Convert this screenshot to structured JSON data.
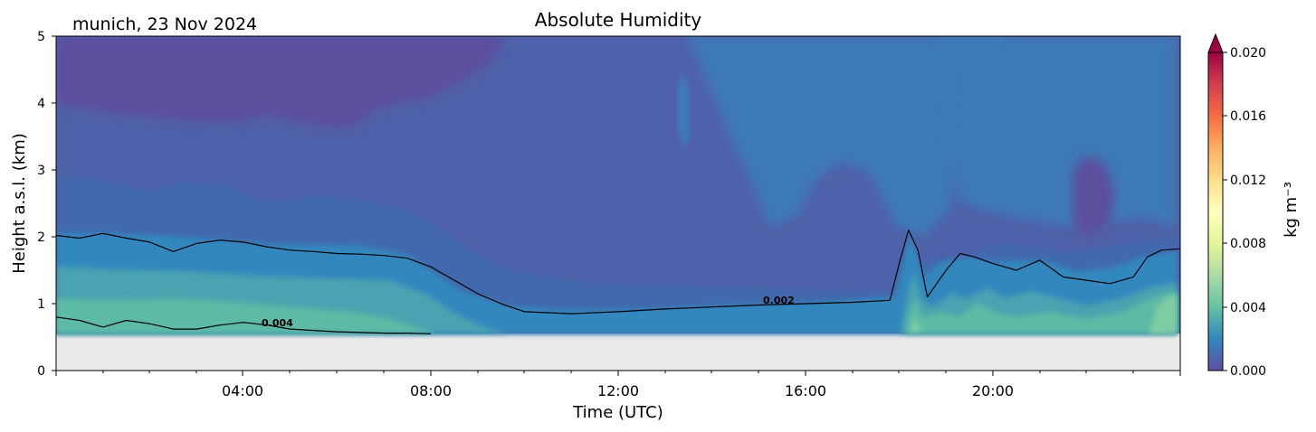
{
  "chart_data": {
    "type": "heatmap",
    "title": "Absolute Humidity",
    "subtitle": "munich, 23 Nov 2024",
    "xlabel": "Time (UTC)",
    "ylabel": "Height a.s.l. (km)",
    "xlim": [
      "00:00",
      "24:00"
    ],
    "ylim": [
      0,
      5
    ],
    "x_ticks": [
      "04:00",
      "08:00",
      "12:00",
      "16:00",
      "20:00"
    ],
    "y_ticks": [
      "0",
      "1",
      "2",
      "3",
      "4",
      "5"
    ],
    "no_data_below_km": 0.55,
    "no_data_color": "#ebebeb",
    "colorbar": {
      "label": "kg m⁻³",
      "min": 0.0,
      "max": 0.02,
      "ticks": [
        "0.000",
        "0.004",
        "0.008",
        "0.012",
        "0.016",
        "0.020"
      ],
      "extend": "max",
      "colormap": "Spectral_r",
      "colors": [
        "#5e4fa2",
        "#3288bd",
        "#66c2a5",
        "#abdda4",
        "#e6f598",
        "#ffffbf",
        "#fee08b",
        "#fdae61",
        "#f46d43",
        "#d53e4f",
        "#9e0142"
      ]
    },
    "contour_labels": [
      "0.004",
      "0.002"
    ],
    "contour_label_positions": [
      {
        "text": "0.004",
        "time_h": 4.8,
        "height_km": 0.68
      },
      {
        "text": "0.002",
        "time_h": 15.3,
        "height_km": 1.0
      }
    ],
    "contours": [
      {
        "level": 0.002,
        "time_h": [
          0.0,
          0.5,
          1.0,
          1.5,
          2.0,
          2.5,
          3.0,
          3.5,
          4.0,
          4.5,
          5.0,
          5.5,
          6.0,
          6.5,
          7.0,
          7.5,
          8.0,
          8.5,
          9.0,
          9.5,
          10.0,
          11.0,
          12.0,
          13.0,
          14.0,
          15.0,
          16.0,
          17.0,
          17.8,
          18.0,
          18.2,
          18.4,
          18.6,
          18.8,
          19.0,
          19.3,
          19.6,
          20.0,
          20.5,
          21.0,
          21.5,
          22.0,
          22.5,
          23.0,
          23.3,
          23.6,
          24.0
        ],
        "height_km": [
          2.02,
          1.98,
          2.05,
          1.98,
          1.92,
          1.78,
          1.9,
          1.95,
          1.92,
          1.85,
          1.8,
          1.78,
          1.75,
          1.74,
          1.72,
          1.68,
          1.55,
          1.35,
          1.15,
          1.0,
          0.88,
          0.85,
          0.88,
          0.92,
          0.95,
          0.98,
          1.0,
          1.02,
          1.05,
          1.6,
          2.1,
          1.8,
          1.1,
          1.3,
          1.5,
          1.75,
          1.7,
          1.6,
          1.5,
          1.65,
          1.4,
          1.35,
          1.3,
          1.4,
          1.7,
          1.8,
          1.82
        ]
      },
      {
        "level": 0.004,
        "time_h": [
          0.0,
          0.5,
          1.0,
          1.5,
          2.0,
          2.5,
          3.0,
          3.5,
          4.0,
          4.5,
          5.0,
          5.5,
          6.0,
          7.0,
          7.5,
          8.0
        ],
        "height_km": [
          0.8,
          0.75,
          0.65,
          0.75,
          0.7,
          0.62,
          0.62,
          0.68,
          0.72,
          0.68,
          0.62,
          0.6,
          0.58,
          0.56,
          0.56,
          0.55
        ]
      }
    ]
  }
}
